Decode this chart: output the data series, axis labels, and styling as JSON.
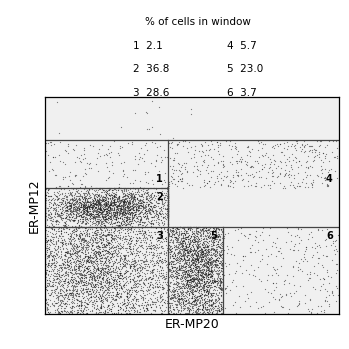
{
  "xlabel": "ER-MP20",
  "ylabel": "ER-MP12",
  "legend_title": "% of cells in window",
  "row_data": [
    [
      "1",
      "2.1",
      "4",
      "5.7"
    ],
    [
      "2",
      "36.8",
      "5",
      "23.0"
    ],
    [
      "3",
      "28.6",
      "6",
      "3.7"
    ]
  ],
  "xlim": [
    0,
    1024
  ],
  "ylim": [
    0,
    1024
  ],
  "gate_x1": 430,
  "gate_y1": 410,
  "gate_y2": 595,
  "gate_vx2": 620,
  "top_boundary_y": 820,
  "background_color": "#f0f0f0",
  "dot_color": "#1a1a1a",
  "line_color": "#444444",
  "seed": 42,
  "n_total": 8000,
  "pcts": {
    "1": 2.1,
    "2": 36.8,
    "3": 28.6,
    "4": 5.7,
    "5": 23.0,
    "6": 3.7
  }
}
